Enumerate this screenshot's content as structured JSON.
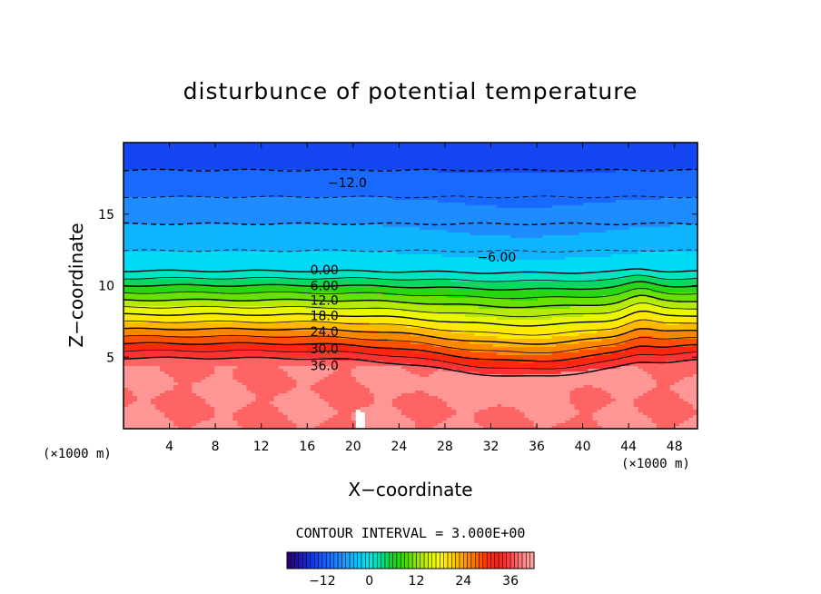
{
  "chart_data": {
    "type": "heatmap",
    "title": "disturbunce of potential temperature",
    "xlabel": "X−coordinate",
    "ylabel": "Z−coordinate",
    "x_unit": "(×1000 m)",
    "y_unit": "(×1000 m)",
    "xlim": [
      0,
      50
    ],
    "ylim": [
      0,
      20
    ],
    "x_ticks": [
      4,
      8,
      12,
      16,
      20,
      24,
      28,
      32,
      36,
      40,
      44,
      48
    ],
    "y_ticks": [
      5,
      10,
      15
    ],
    "contour_interval_text": "CONTOUR INTERVAL = 3.000E+00",
    "contour_interval": 3.0,
    "value_range": [
      -21,
      42
    ],
    "contour_labels": [
      {
        "text": "−12.0",
        "x": 19.5,
        "z": 17.2
      },
      {
        "text": "−6.00",
        "x": 32.5,
        "z": 12.0
      },
      {
        "text": "0.00",
        "x": 17.5,
        "z": 11.1
      },
      {
        "text": "6.00",
        "x": 17.5,
        "z": 10.0
      },
      {
        "text": "12.0",
        "x": 17.5,
        "z": 9.0
      },
      {
        "text": "18.0",
        "x": 17.5,
        "z": 7.9
      },
      {
        "text": "24.0",
        "x": 17.5,
        "z": 6.8
      },
      {
        "text": "30.0",
        "x": 17.5,
        "z": 5.6
      },
      {
        "text": "36.0",
        "x": 17.5,
        "z": 4.4
      }
    ],
    "colorbar": {
      "tick_labels": [
        "−12",
        "0",
        "12",
        "24",
        "36"
      ],
      "tick_values": [
        -12,
        0,
        12,
        24,
        36
      ],
      "range": [
        -21,
        42
      ]
    },
    "colors": {
      "low": "#2a006e",
      "blue": "#1e64ff",
      "cyan": "#00e6ff",
      "green": "#1ed21e",
      "yellow": "#ffff00",
      "orange": "#ff8c00",
      "red": "#ff1e1e",
      "pink": "#ff8c8c"
    }
  }
}
